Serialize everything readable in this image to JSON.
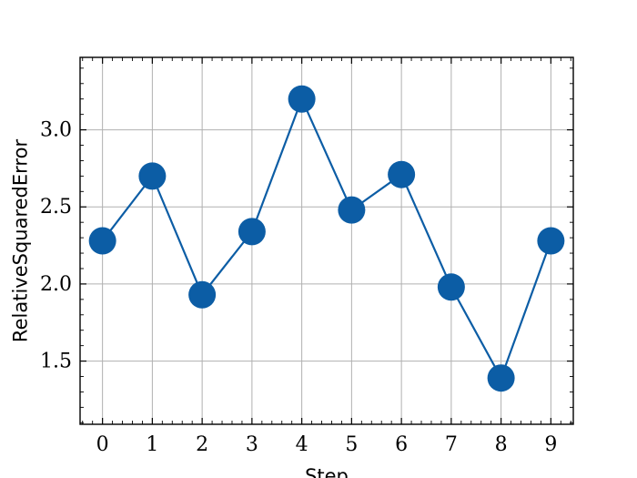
{
  "chart_data": {
    "type": "line",
    "title": "",
    "xlabel": "Step",
    "ylabel": "RelativeSquaredError",
    "x": [
      0,
      1,
      2,
      3,
      4,
      5,
      6,
      7,
      8,
      9
    ],
    "series": [
      {
        "values": [
          2.28,
          2.7,
          1.93,
          2.34,
          3.2,
          2.48,
          2.71,
          1.98,
          1.39,
          2.28
        ],
        "color": "#0c5da5",
        "marker": "circle"
      }
    ],
    "xlim": [
      -0.45,
      9.45
    ],
    "ylim": [
      1.09,
      3.47
    ],
    "xticks": [
      0,
      1,
      2,
      3,
      4,
      5,
      6,
      7,
      8,
      9
    ],
    "xtick_labels": [
      "0",
      "1",
      "2",
      "3",
      "4",
      "5",
      "6",
      "7",
      "8",
      "9"
    ],
    "yticks": [
      1.5,
      2.0,
      2.5,
      3.0
    ],
    "ytick_labels": [
      "1.5",
      "2.0",
      "2.5",
      "3.0"
    ],
    "grid": true,
    "legend": false
  }
}
